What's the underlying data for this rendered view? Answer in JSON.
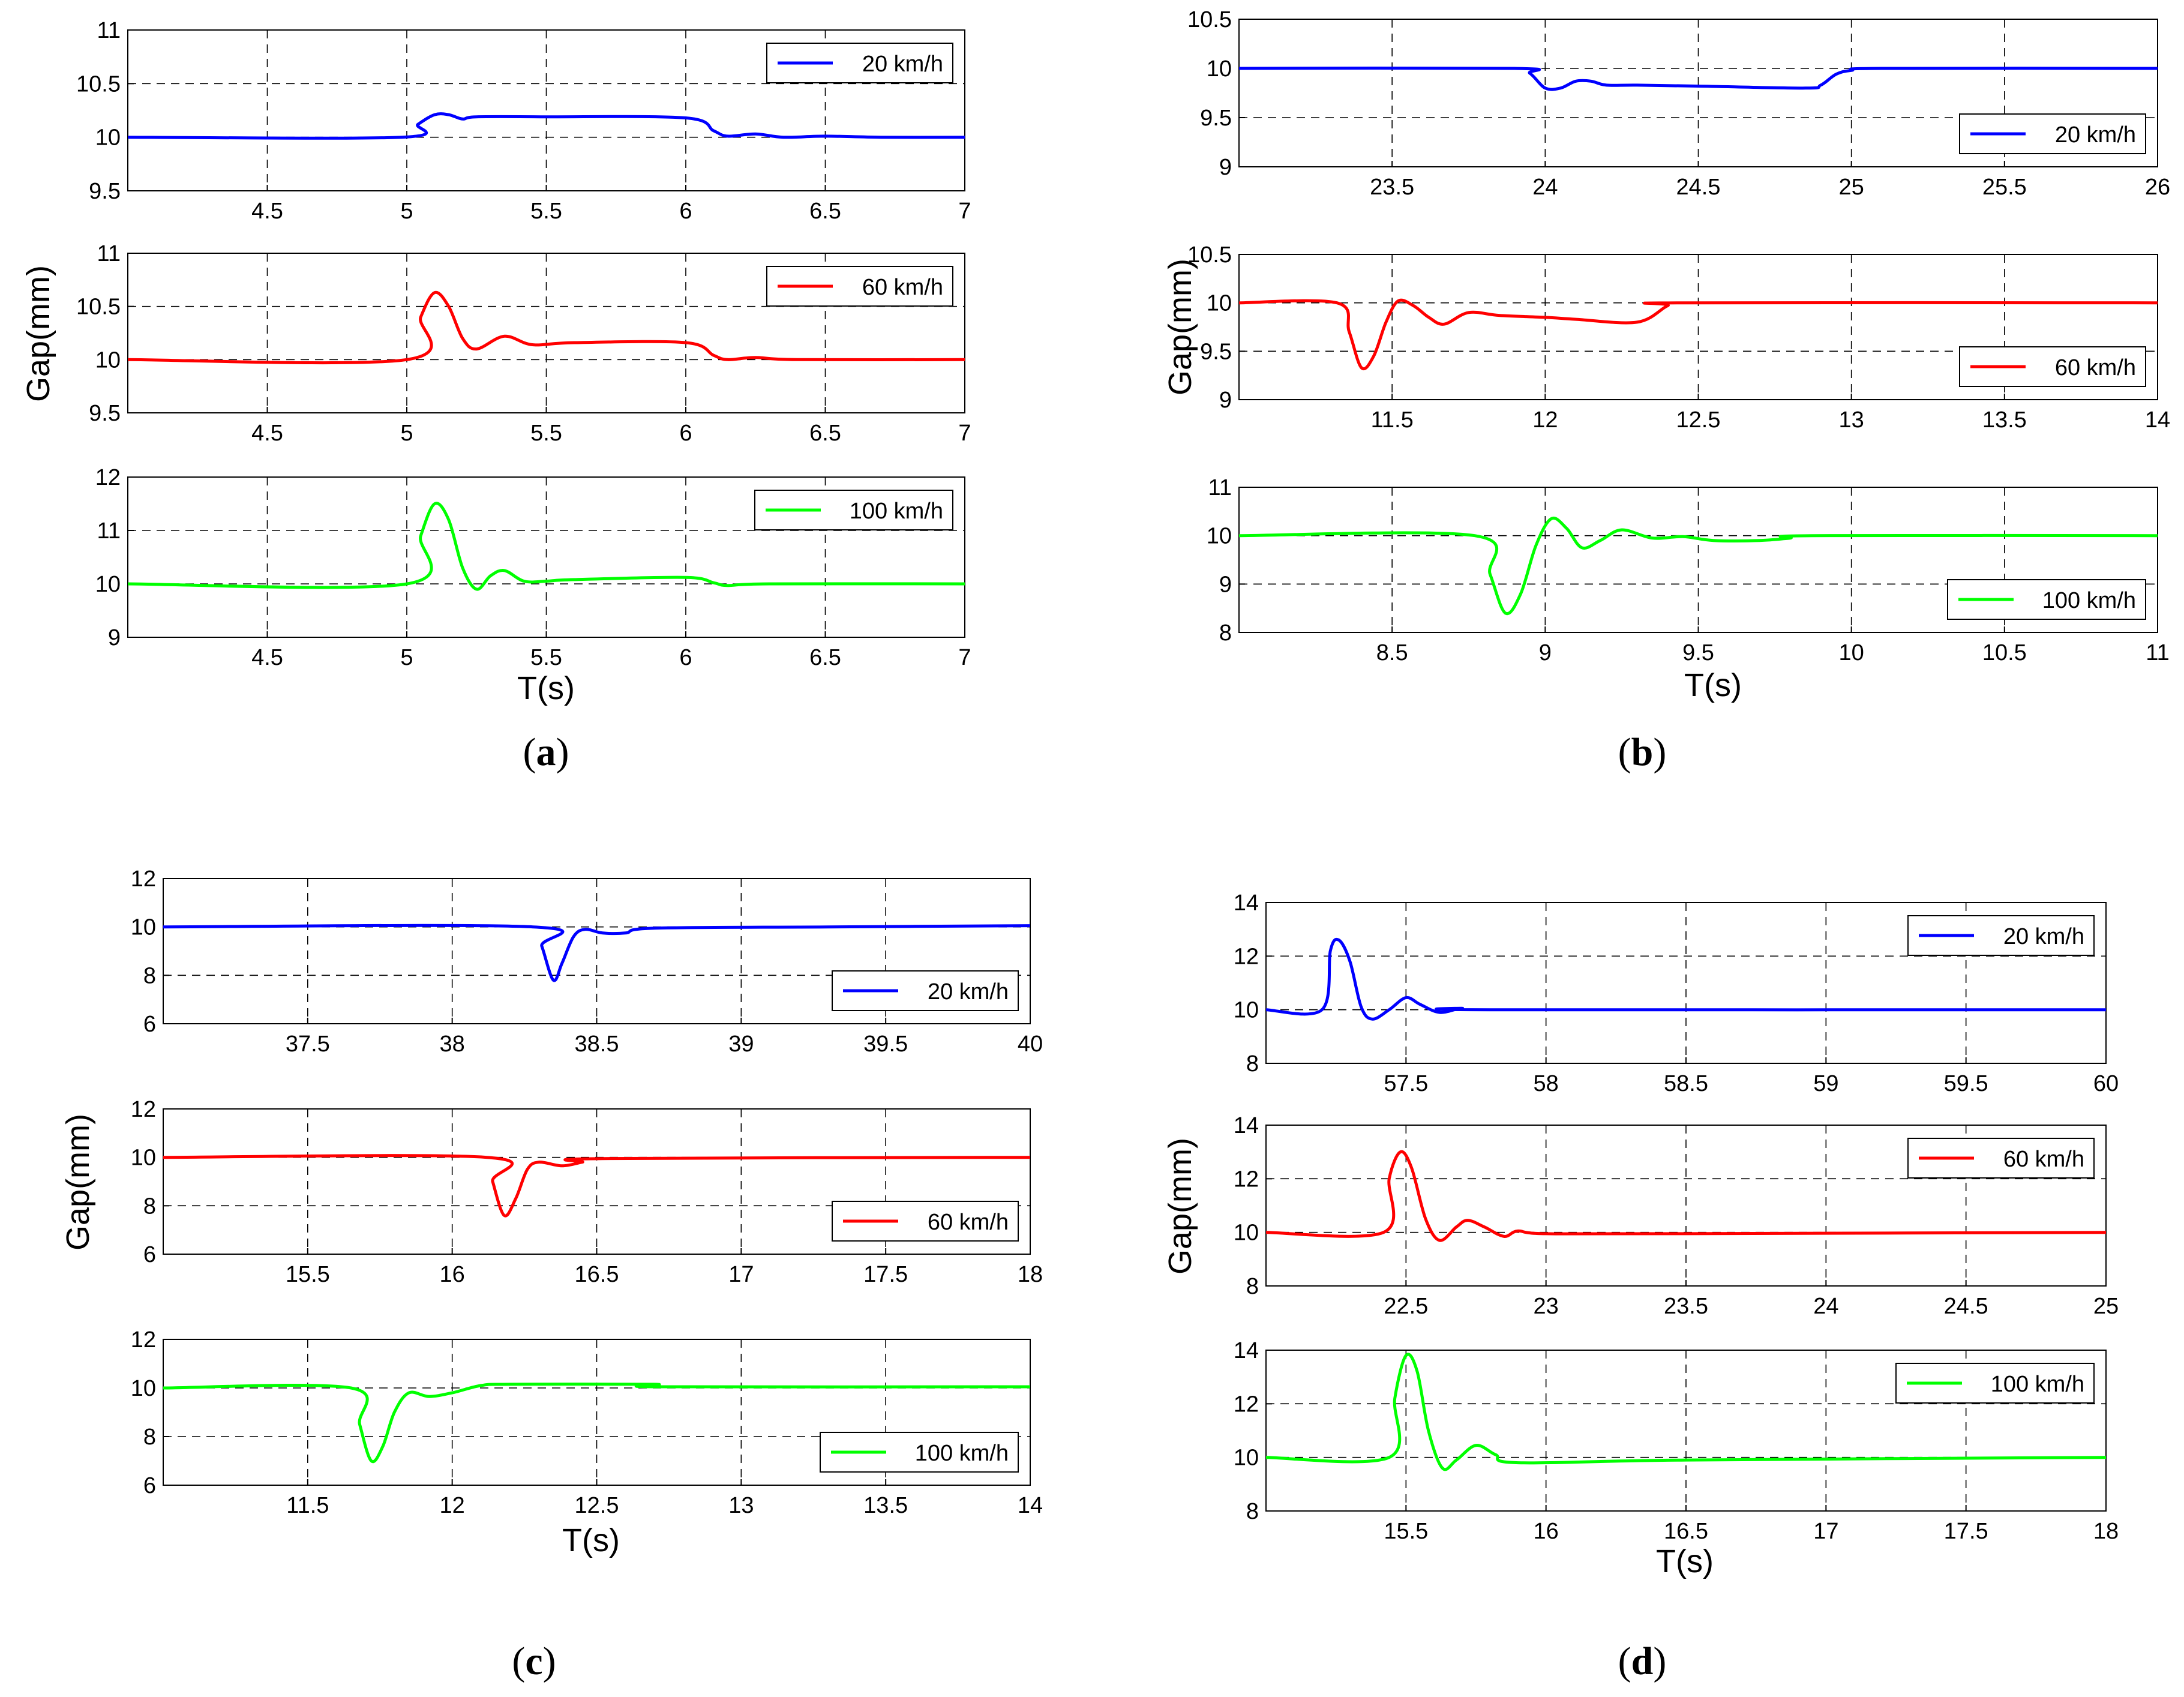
{
  "chart_data": [
    {
      "type": "line",
      "caption_letter": "a",
      "ylabel": "Gap(mm)",
      "xlabel": "T(s)",
      "subplots": [
        {
          "legend": "20 km/h",
          "color": "#0000ff",
          "legend_pos": "top-right",
          "xlim": [
            4,
            7
          ],
          "xticks": [
            4.5,
            5,
            5.5,
            6,
            6.5,
            7
          ],
          "xtick_labels": [
            "4.5",
            "5",
            "5.5",
            "6",
            "6.5",
            "7"
          ],
          "ylim": [
            9.5,
            11
          ],
          "yticks": [
            9.5,
            10,
            10.5,
            11
          ],
          "ytick_labels": [
            "9.5",
            "10",
            "10.5",
            "11"
          ],
          "x": [
            4,
            4.98,
            5.04,
            5.1,
            5.15,
            5.2,
            5.25,
            5.5,
            6,
            6.1,
            6.15,
            6.25,
            6.35,
            6.5,
            6.7,
            7
          ],
          "y": [
            10,
            10,
            10.12,
            10.21,
            10.21,
            10.17,
            10.19,
            10.19,
            10.18,
            10.06,
            10.01,
            10.03,
            10,
            10.01,
            10,
            10
          ]
        },
        {
          "legend": "60 km/h",
          "color": "#ff0000",
          "legend_pos": "top-right",
          "xlim": [
            4,
            7
          ],
          "xticks": [
            4.5,
            5,
            5.5,
            6,
            6.5,
            7
          ],
          "xtick_labels": [
            "4.5",
            "5",
            "5.5",
            "6",
            "6.5",
            "7"
          ],
          "ylim": [
            9.5,
            11
          ],
          "yticks": [
            9.5,
            10,
            10.5,
            11
          ],
          "ytick_labels": [
            "9.5",
            "10",
            "10.5",
            "11"
          ],
          "x": [
            4,
            5,
            5.05,
            5.1,
            5.15,
            5.2,
            5.25,
            5.35,
            5.45,
            5.6,
            6,
            6.1,
            6.15,
            6.25,
            6.4,
            7
          ],
          "y": [
            10,
            10,
            10.4,
            10.63,
            10.5,
            10.2,
            10.1,
            10.22,
            10.14,
            10.16,
            10.16,
            10.04,
            10,
            10.02,
            10,
            10
          ]
        },
        {
          "legend": "100 km/h",
          "color": "#00ff00",
          "legend_pos": "top-right",
          "xlim": [
            4,
            7
          ],
          "xticks": [
            4.5,
            5,
            5.5,
            6,
            6.5,
            7
          ],
          "xtick_labels": [
            "4.5",
            "5",
            "5.5",
            "6",
            "6.5",
            "7"
          ],
          "ylim": [
            9,
            12
          ],
          "yticks": [
            9,
            10,
            11,
            12
          ],
          "ytick_labels": [
            "9",
            "10",
            "11",
            "12"
          ],
          "x": [
            4,
            5,
            5.05,
            5.1,
            5.15,
            5.2,
            5.25,
            5.3,
            5.35,
            5.42,
            5.5,
            5.6,
            6,
            6.1,
            6.15,
            6.3,
            7
          ],
          "y": [
            10,
            10,
            10.9,
            11.5,
            11.2,
            10.3,
            9.9,
            10.15,
            10.25,
            10.05,
            10.05,
            10.08,
            10.12,
            10.02,
            9.97,
            10,
            10
          ]
        }
      ]
    },
    {
      "type": "line",
      "caption_letter": "b",
      "ylabel": "Gap(mm)",
      "xlabel": "T(s)",
      "subplots": [
        {
          "legend": "20 km/h",
          "color": "#0000ff",
          "legend_pos": "bottom-right",
          "xlim": [
            23,
            26
          ],
          "xticks": [
            23.5,
            24,
            24.5,
            25,
            25.5,
            26
          ],
          "xtick_labels": [
            "23.5",
            "24",
            "24.5",
            "25",
            "25.5",
            "26"
          ],
          "ylim": [
            9,
            10.5
          ],
          "yticks": [
            9,
            9.5,
            10,
            10.5
          ],
          "ytick_labels": [
            "9",
            "9.5",
            "10",
            "10.5"
          ],
          "x": [
            23,
            23.9,
            23.95,
            24,
            24.05,
            24.1,
            24.15,
            24.2,
            24.3,
            24.5,
            24.85,
            24.9,
            24.95,
            25,
            25.1,
            26
          ],
          "y": [
            10,
            10,
            9.95,
            9.8,
            9.8,
            9.87,
            9.87,
            9.83,
            9.83,
            9.82,
            9.8,
            9.83,
            9.94,
            9.98,
            10,
            10
          ]
        },
        {
          "legend": "60 km/h",
          "color": "#ff0000",
          "legend_pos": "bottom-right",
          "xlim": [
            11,
            14
          ],
          "xticks": [
            11.5,
            12,
            12.5,
            13,
            13.5,
            14
          ],
          "xtick_labels": [
            "11.5",
            "12",
            "12.5",
            "13",
            "13.5",
            "14"
          ],
          "ylim": [
            9,
            10.5
          ],
          "yticks": [
            9,
            9.5,
            10,
            10.5
          ],
          "ytick_labels": [
            "9",
            "9.5",
            "10",
            "10.5"
          ],
          "x": [
            11,
            11.32,
            11.36,
            11.4,
            11.44,
            11.48,
            11.52,
            11.57,
            11.62,
            11.67,
            11.75,
            11.85,
            12,
            12.1,
            12.3,
            12.4,
            12.45,
            14
          ],
          "y": [
            10,
            10,
            9.7,
            9.33,
            9.45,
            9.8,
            10.02,
            9.97,
            9.85,
            9.78,
            9.9,
            9.87,
            9.85,
            9.83,
            9.8,
            9.97,
            10,
            10
          ]
        },
        {
          "legend": "100 km/h",
          "color": "#00ff00",
          "legend_pos": "bottom-right",
          "xlim": [
            8,
            11
          ],
          "xticks": [
            8.5,
            9,
            9.5,
            10,
            10.5,
            11
          ],
          "xtick_labels": [
            "8.5",
            "9",
            "9.5",
            "10",
            "10.5",
            "11"
          ],
          "ylim": [
            8,
            11
          ],
          "yticks": [
            8,
            9,
            10,
            11
          ],
          "ytick_labels": [
            "8",
            "9",
            "10",
            "11"
          ],
          "x": [
            8,
            8.77,
            8.82,
            8.87,
            8.92,
            8.97,
            9.02,
            9.07,
            9.12,
            9.18,
            9.25,
            9.35,
            9.45,
            9.55,
            9.7,
            9.8,
            9.87,
            11
          ],
          "y": [
            10,
            10,
            9.2,
            8.4,
            8.8,
            9.8,
            10.35,
            10.15,
            9.75,
            9.9,
            10.12,
            9.95,
            9.98,
            9.9,
            9.9,
            9.95,
            10,
            10
          ]
        }
      ]
    },
    {
      "type": "line",
      "caption_letter": "c",
      "ylabel": "Gap(mm)",
      "xlabel": "T(s)",
      "subplots": [
        {
          "legend": "20 km/h",
          "color": "#0000ff",
          "legend_pos": "bottom-right",
          "xlim": [
            37,
            40
          ],
          "xticks": [
            37.5,
            38,
            38.5,
            39,
            39.5,
            40
          ],
          "xtick_labels": [
            "37.5",
            "38",
            "38.5",
            "39",
            "39.5",
            "40"
          ],
          "ylim": [
            6,
            12
          ],
          "yticks": [
            6,
            8,
            10,
            12
          ],
          "ytick_labels": [
            "6",
            "8",
            "10",
            "12"
          ],
          "x": [
            37,
            38.28,
            38.31,
            38.35,
            38.38,
            38.42,
            38.46,
            38.52,
            38.6,
            38.7,
            39.3,
            40
          ],
          "y": [
            10,
            10,
            9.2,
            7.8,
            8.5,
            9.6,
            9.9,
            9.75,
            9.75,
            9.95,
            10,
            10.05
          ]
        },
        {
          "legend": "60 km/h",
          "color": "#ff0000",
          "legend_pos": "bottom-right",
          "xlim": [
            15,
            18
          ],
          "xticks": [
            15.5,
            16,
            16.5,
            17,
            17.5,
            18
          ],
          "xtick_labels": [
            "15.5",
            "16",
            "16.5",
            "17",
            "17.5",
            "18"
          ],
          "ylim": [
            6,
            12
          ],
          "yticks": [
            6,
            8,
            10,
            12
          ],
          "ytick_labels": [
            "6",
            "8",
            "10",
            "12"
          ],
          "x": [
            15,
            16.12,
            16.14,
            16.18,
            16.22,
            16.26,
            16.3,
            16.38,
            16.45,
            16.52,
            18
          ],
          "y": [
            10,
            10,
            9,
            7.6,
            8.3,
            9.5,
            9.8,
            9.65,
            9.8,
            9.95,
            10
          ]
        },
        {
          "legend": "100 km/h",
          "color": "#00ff00",
          "legend_pos": "bottom-right",
          "xlim": [
            11,
            14
          ],
          "xticks": [
            11.5,
            12,
            12.5,
            13,
            13.5,
            14
          ],
          "xtick_labels": [
            "11.5",
            "12",
            "12.5",
            "13",
            "13.5",
            "14"
          ],
          "ylim": [
            6,
            12
          ],
          "yticks": [
            6,
            8,
            10,
            12
          ],
          "ytick_labels": [
            "6",
            "8",
            "10",
            "12"
          ],
          "x": [
            11,
            11.65,
            11.68,
            11.72,
            11.76,
            11.8,
            11.85,
            11.92,
            12,
            12.1,
            12.2,
            12.7,
            12.72,
            14
          ],
          "y": [
            10,
            10,
            8.5,
            7,
            7.6,
            9,
            9.8,
            9.65,
            9.8,
            10.1,
            10.15,
            10.15,
            10.05,
            10.05
          ]
        }
      ]
    },
    {
      "type": "line",
      "caption_letter": "d",
      "ylabel": "Gap(mm)",
      "xlabel": "T(s)",
      "subplots": [
        {
          "legend": "20 km/h",
          "color": "#0000ff",
          "legend_pos": "top-right",
          "xlim": [
            57,
            60
          ],
          "xticks": [
            57.5,
            58,
            58.5,
            59,
            59.5,
            60
          ],
          "xtick_labels": [
            "57.5",
            "58",
            "58.5",
            "59",
            "59.5",
            "60"
          ],
          "ylim": [
            8,
            14
          ],
          "yticks": [
            8,
            10,
            12,
            14
          ],
          "ytick_labels": [
            "8",
            "10",
            "12",
            "14"
          ],
          "x": [
            57,
            57.2,
            57.23,
            57.26,
            57.3,
            57.34,
            57.38,
            57.44,
            57.5,
            57.55,
            57.62,
            57.7,
            57.8,
            60
          ],
          "y": [
            10,
            10,
            12.2,
            12.6,
            11.8,
            10.1,
            9.65,
            10,
            10.45,
            10.2,
            9.9,
            10.05,
            10,
            10
          ]
        },
        {
          "legend": "60 km/h",
          "color": "#ff0000",
          "legend_pos": "top-right",
          "xlim": [
            22,
            25
          ],
          "xticks": [
            22.5,
            23,
            23.5,
            24,
            24.5,
            25
          ],
          "xtick_labels": [
            "22.5",
            "23",
            "23.5",
            "24",
            "24.5",
            "25"
          ],
          "ylim": [
            8,
            14
          ],
          "yticks": [
            8,
            10,
            12,
            14
          ],
          "ytick_labels": [
            "8",
            "10",
            "12",
            "14"
          ],
          "x": [
            22,
            22.42,
            22.44,
            22.48,
            22.52,
            22.57,
            22.62,
            22.68,
            22.72,
            22.78,
            22.85,
            22.9,
            23,
            23.5,
            25
          ],
          "y": [
            10,
            10,
            12,
            13,
            12.4,
            10.5,
            9.7,
            10.2,
            10.45,
            10.2,
            9.85,
            10.05,
            9.95,
            9.95,
            10
          ]
        },
        {
          "legend": "100 km/h",
          "color": "#00ff00",
          "legend_pos": "top-right",
          "xlim": [
            15,
            18
          ],
          "xticks": [
            15.5,
            16,
            16.5,
            17,
            17.5,
            18
          ],
          "xtick_labels": [
            "15.5",
            "16",
            "16.5",
            "17",
            "17.5",
            "18"
          ],
          "ylim": [
            8,
            14
          ],
          "yticks": [
            8,
            10,
            12,
            14
          ],
          "ytick_labels": [
            "8",
            "10",
            "12",
            "14"
          ],
          "x": [
            15,
            15.44,
            15.46,
            15.5,
            15.54,
            15.58,
            15.63,
            15.68,
            15.75,
            15.82,
            15.9,
            16.5,
            18
          ],
          "y": [
            10,
            10,
            12.2,
            13.8,
            13.2,
            11,
            9.6,
            9.9,
            10.45,
            10.1,
            9.8,
            9.9,
            10
          ]
        }
      ]
    }
  ]
}
